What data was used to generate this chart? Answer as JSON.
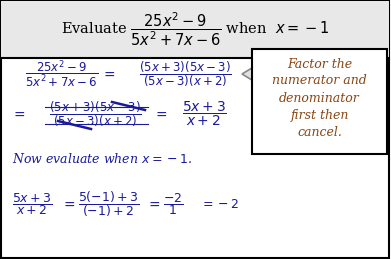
{
  "figsize": [
    3.91,
    2.59
  ],
  "dpi": 100,
  "title_bg": "#e8e8e8",
  "main_bg": "#ffffff",
  "border_color": "#000000",
  "text_color": "#000000",
  "hand_color": "#1a1a9a",
  "note_color": "#8B4513",
  "note_lines": [
    "Factor the",
    "numerator and",
    "denominator",
    "first then",
    "cancel."
  ]
}
